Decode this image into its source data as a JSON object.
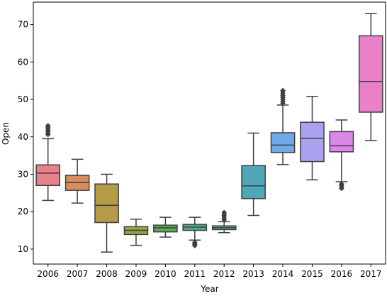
{
  "chart_data": {
    "type": "box",
    "xlabel": "Year",
    "ylabel": "Open",
    "ylim": [
      6,
      76
    ],
    "yticks": [
      10,
      20,
      30,
      40,
      50,
      60,
      70
    ],
    "grid": false,
    "legend": "none",
    "categories": [
      "2006",
      "2007",
      "2008",
      "2009",
      "2010",
      "2011",
      "2012",
      "2013",
      "2014",
      "2015",
      "2016",
      "2017"
    ],
    "colors": [
      "#e8818c",
      "#d88c5e",
      "#b59a48",
      "#95a440",
      "#5aab50",
      "#4fae8a",
      "#50aea1",
      "#4fa8ba",
      "#6fa9e6",
      "#aaa2ef",
      "#dc86e9",
      "#ea81c8"
    ],
    "boxes": [
      {
        "q1": 27.0,
        "median": 30.3,
        "q3": 32.5,
        "whisker_low": 23.0,
        "whisker_high": 39.5,
        "outliers": [
          40.6,
          41.0,
          41.4,
          41.8,
          42.2,
          42.6,
          43.0
        ]
      },
      {
        "q1": 25.7,
        "median": 27.8,
        "q3": 29.7,
        "whisker_low": 22.3,
        "whisker_high": 34.0,
        "outliers": []
      },
      {
        "q1": 17.1,
        "median": 21.7,
        "q3": 27.4,
        "whisker_low": 9.2,
        "whisker_high": 30.0,
        "outliers": []
      },
      {
        "q1": 13.9,
        "median": 15.0,
        "q3": 16.0,
        "whisker_low": 11.0,
        "whisker_high": 18.0,
        "outliers": []
      },
      {
        "q1": 14.6,
        "median": 15.7,
        "q3": 16.4,
        "whisker_low": 13.2,
        "whisker_high": 18.5,
        "outliers": []
      },
      {
        "q1": 15.0,
        "median": 15.9,
        "q3": 16.6,
        "whisker_low": 12.4,
        "whisker_high": 18.5,
        "outliers": [
          10.9,
          11.2,
          11.5,
          11.8
        ]
      },
      {
        "q1": 15.2,
        "median": 15.7,
        "q3": 16.2,
        "whisker_low": 14.4,
        "whisker_high": 17.3,
        "outliers": [
          17.8,
          18.2,
          18.6,
          19.0,
          19.4,
          19.8
        ]
      },
      {
        "q1": 23.5,
        "median": 26.9,
        "q3": 32.3,
        "whisker_low": 19.0,
        "whisker_high": 41.0,
        "outliers": []
      },
      {
        "q1": 35.8,
        "median": 37.8,
        "q3": 41.1,
        "whisker_low": 32.6,
        "whisker_high": 48.5,
        "outliers": [
          49.0,
          49.5,
          50.0,
          50.5,
          51.0,
          51.5,
          52.0,
          52.4
        ]
      },
      {
        "q1": 33.4,
        "median": 39.6,
        "q3": 43.9,
        "whisker_low": 28.5,
        "whisker_high": 50.8,
        "outliers": []
      },
      {
        "q1": 36.0,
        "median": 37.6,
        "q3": 41.4,
        "whisker_low": 28.0,
        "whisker_high": 44.5,
        "outliers": [
          26.2,
          26.6,
          27.0,
          27.4
        ]
      },
      {
        "q1": 46.6,
        "median": 54.8,
        "q3": 67.0,
        "whisker_low": 39.0,
        "whisker_high": 73.0,
        "outliers": []
      }
    ]
  }
}
